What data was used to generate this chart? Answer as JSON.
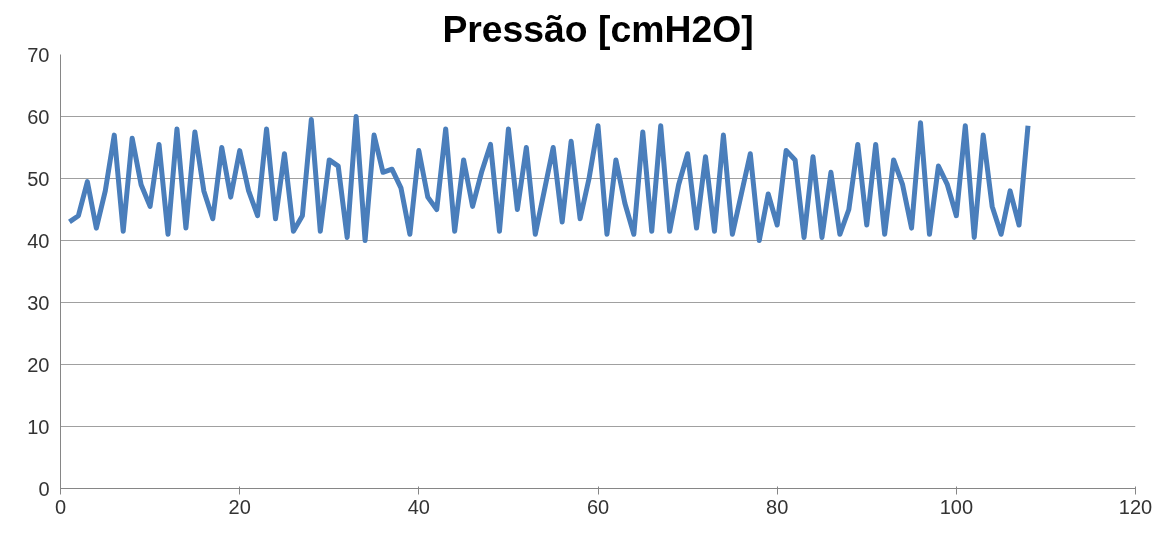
{
  "chart_data": {
    "type": "line",
    "title": "Pressão [cmH2O]",
    "x": [
      1,
      2,
      3,
      4,
      5,
      6,
      7,
      8,
      9,
      10,
      11,
      12,
      13,
      14,
      15,
      16,
      17,
      18,
      19,
      20,
      21,
      22,
      23,
      24,
      25,
      26,
      27,
      28,
      29,
      30,
      31,
      32,
      33,
      34,
      35,
      36,
      37,
      38,
      39,
      40,
      41,
      42,
      43,
      44,
      45,
      46,
      47,
      48,
      49,
      50,
      51,
      52,
      53,
      54,
      55,
      56,
      57,
      58,
      59,
      60,
      61,
      62,
      63,
      64,
      65,
      66,
      67,
      68,
      69,
      70,
      71,
      72,
      73,
      74,
      75,
      76,
      77,
      78,
      79,
      80,
      81,
      82,
      83,
      84,
      85,
      86,
      87,
      88,
      89,
      90,
      91,
      92,
      93,
      94,
      95,
      96,
      97,
      98,
      99,
      100,
      101,
      102,
      103,
      104,
      105,
      106,
      107,
      108
    ],
    "series": [
      {
        "color": "#4a7ebb",
        "values": [
          43,
          44,
          49.5,
          42,
          48,
          57,
          41.5,
          56.5,
          49,
          45.5,
          55.5,
          41,
          58,
          42,
          57.5,
          48,
          43.5,
          55,
          47,
          54.5,
          48,
          44,
          58,
          43.5,
          54,
          41.5,
          44,
          59.5,
          41.5,
          53,
          52,
          40.5,
          60,
          40,
          57,
          51,
          51.5,
          48.5,
          41,
          54.5,
          47,
          45,
          58,
          41.5,
          53,
          45.5,
          51,
          55.5,
          41.5,
          58,
          45,
          55,
          41,
          48,
          55,
          43,
          56,
          43.5,
          50,
          58.5,
          41,
          53,
          46,
          41,
          57.5,
          41.5,
          58.5,
          41.5,
          49,
          54,
          42,
          53.5,
          41.5,
          57,
          41,
          47.5,
          54,
          40,
          47.5,
          42.5,
          54.5,
          53,
          40.5,
          53.5,
          40.5,
          51,
          41,
          45,
          55.5,
          42.5,
          55.5,
          41,
          53,
          49,
          42,
          59,
          41,
          52,
          49,
          44,
          58.5,
          40.5,
          57,
          45.5,
          41,
          48,
          42.5,
          58.5
        ]
      }
    ],
    "xlim": [
      0,
      120
    ],
    "xticks": [
      0,
      20,
      40,
      60,
      80,
      100,
      120
    ],
    "ylim": [
      0,
      70
    ],
    "yticks": [
      0,
      10,
      20,
      30,
      40,
      50,
      60,
      70
    ],
    "grid": "y",
    "line_style": "solid",
    "marker": "none"
  }
}
